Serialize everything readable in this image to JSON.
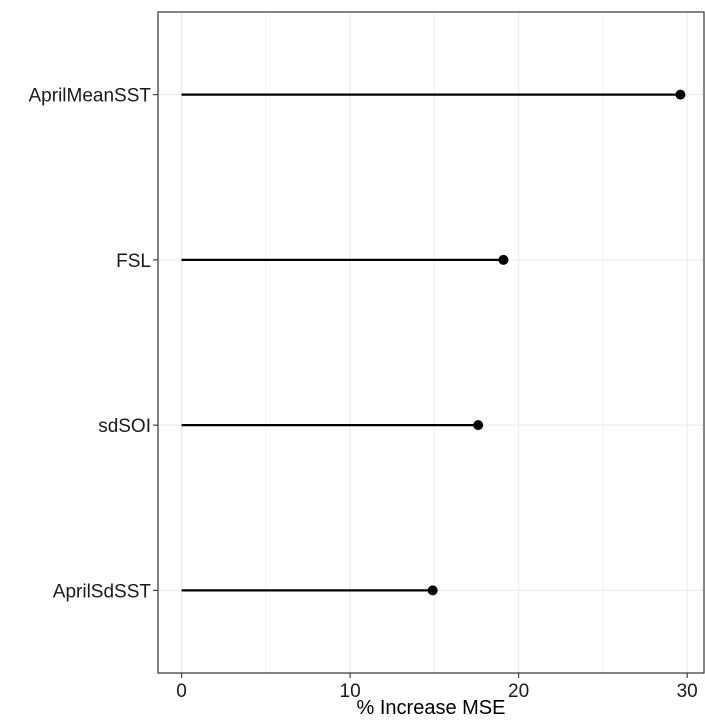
{
  "chart_data": {
    "type": "lollipop",
    "categories": [
      "AprilMeanSST",
      "FSL",
      "sdSOI",
      "AprilSdSST"
    ],
    "values": [
      29.6,
      19.1,
      17.6,
      14.9
    ],
    "xlabel": "% Increase MSE",
    "ylabel": "",
    "xlim": [
      -1.4,
      31.0
    ],
    "x_ticks": [
      0,
      10,
      20,
      30
    ],
    "x_tick_labels": [
      "0",
      "10",
      "20",
      "30"
    ],
    "grid": true,
    "legend": "none",
    "colors": {
      "mark": "#000000",
      "grid": "#ebebeb",
      "panel_border": "#333333",
      "background": "#ffffff"
    }
  }
}
